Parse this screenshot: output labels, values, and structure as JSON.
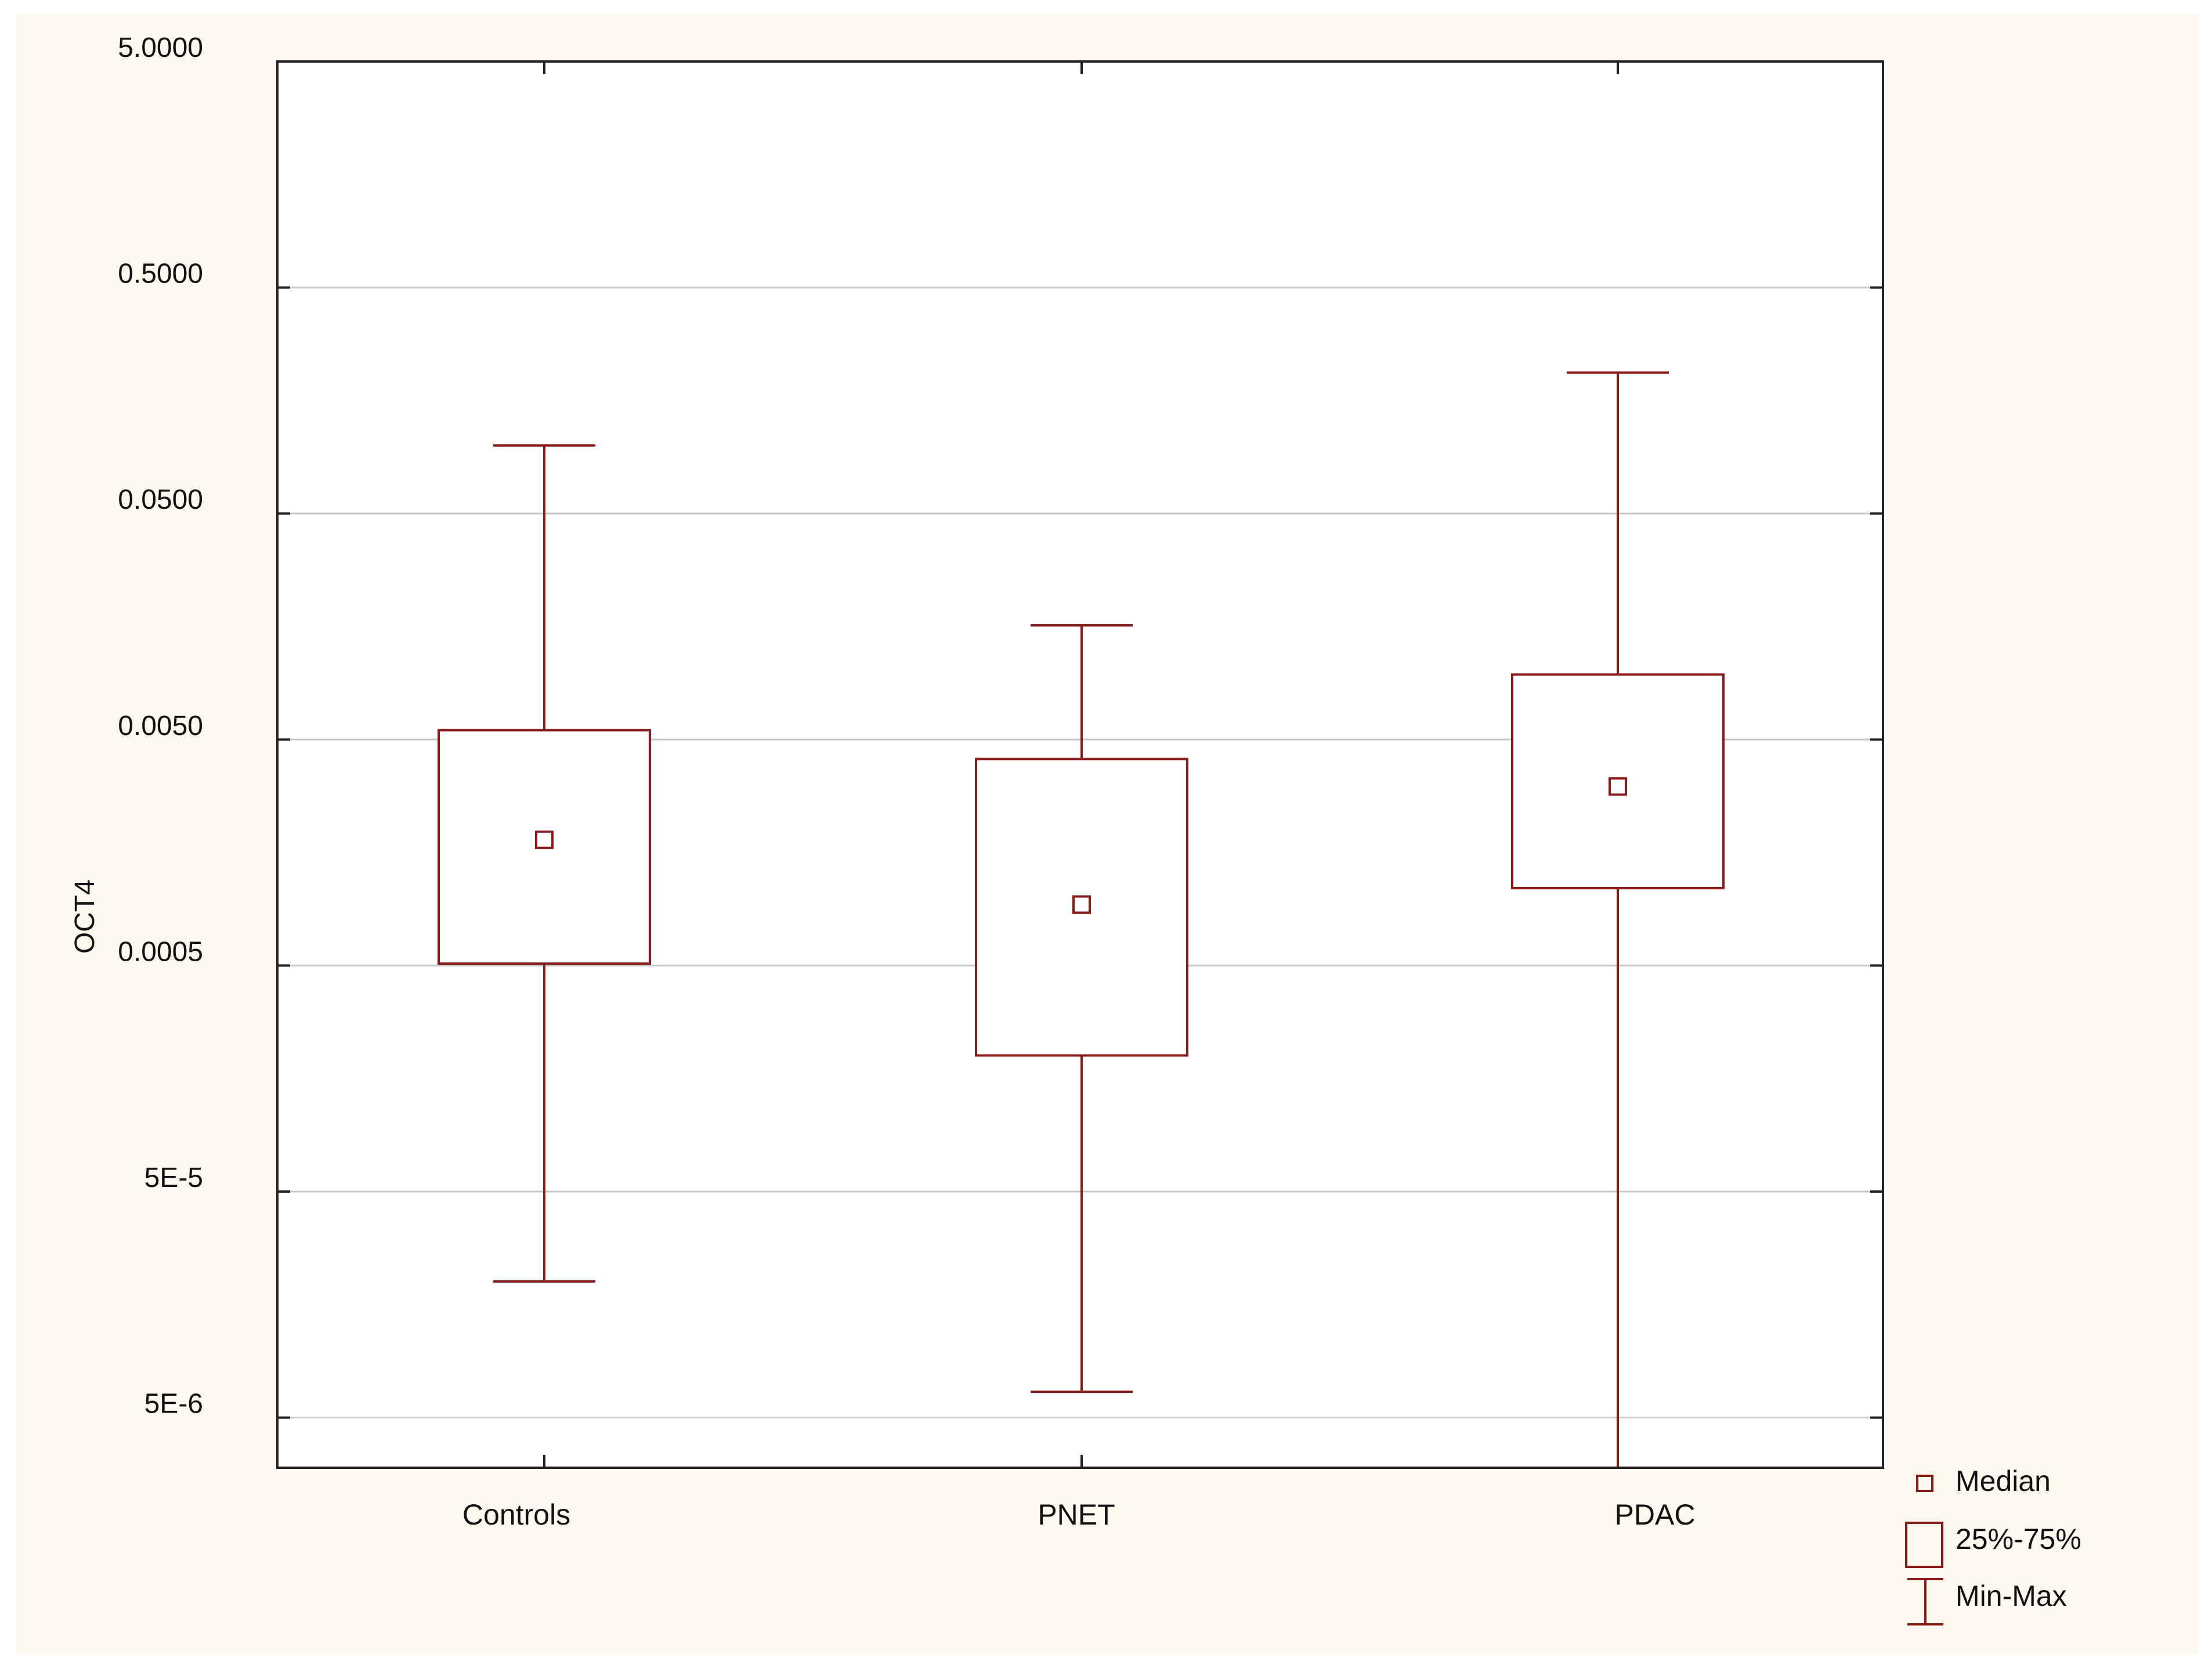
{
  "chart_data": {
    "type": "boxplot",
    "title": "",
    "xlabel": "",
    "ylabel": "OCT4",
    "y_scale": "log",
    "ylim": [
      3e-06,
      5.0
    ],
    "y_ticks": [
      {
        "value": 5.0,
        "label": "5.0000"
      },
      {
        "value": 0.5,
        "label": "0.5000"
      },
      {
        "value": 0.05,
        "label": "0.0500"
      },
      {
        "value": 0.005,
        "label": "0.0050"
      },
      {
        "value": 0.0005,
        "label": "0.0005"
      },
      {
        "value": 5e-05,
        "label": "5E-5"
      },
      {
        "value": 5e-06,
        "label": "5E-6"
      }
    ],
    "grid": "horizontal",
    "categories": [
      "Controls",
      "PNET",
      "PDAC"
    ],
    "boxes": [
      {
        "category": "Controls",
        "min": 2e-05,
        "q1": 0.00051,
        "median": 0.0018,
        "q3": 0.0055,
        "max": 0.1
      },
      {
        "category": "PNET",
        "min": 6.5e-06,
        "q1": 0.0002,
        "median": 0.00093,
        "q3": 0.0041,
        "max": 0.016
      },
      {
        "category": "PDAC",
        "min": 3e-06,
        "q1": 0.0011,
        "median": 0.0031,
        "q3": 0.0097,
        "max": 0.21
      }
    ],
    "legend": {
      "position": "bottom-right",
      "items": [
        {
          "symbol": "median",
          "label": "Median"
        },
        {
          "symbol": "box",
          "label": "25%-75%"
        },
        {
          "symbol": "whisker",
          "label": "Min-Max"
        }
      ]
    },
    "colors": {
      "series": "#8b1a1a",
      "background": "#fdf9ee",
      "plot_background": "#ffffff",
      "grid": "#c8c8c8",
      "axis": "#222222"
    }
  }
}
